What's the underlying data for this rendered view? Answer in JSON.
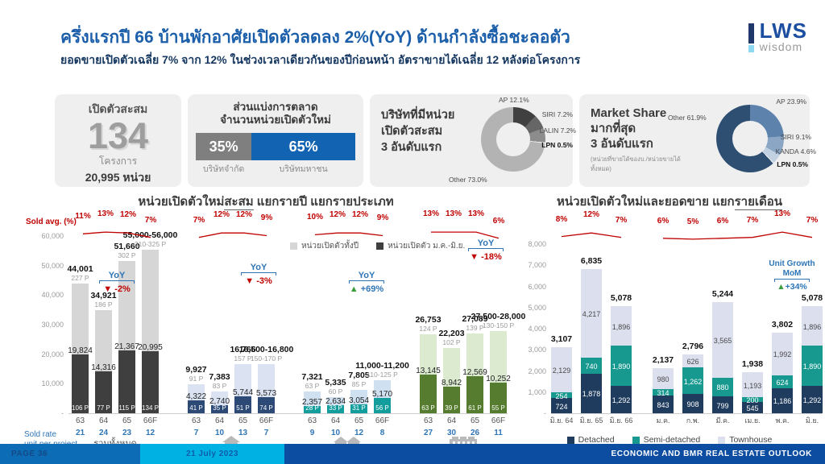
{
  "header": {
    "title": "ครึ่งแรกปี 66 บ้านพักอาศัยเปิดตัวลดลง 2%(YoY) ด้านกำลังซื้อชะลอตัว",
    "subtitle": "ยอดขายเปิดตัวเฉลี่ย 7% จาก 12% ในช่วงเวลาเดียวกันของปีก่อนหน้า อัตราขายได้เฉลี่ย 12 หลังต่อโครงการ",
    "logo": {
      "text": "LWS",
      "sub": "wisdom"
    }
  },
  "cards": {
    "launch_total": {
      "title": "เปิดตัวสะสม",
      "big_number": "134",
      "unit1": "โครงการ",
      "unit2": "20,995 หน่วย"
    },
    "market_split": {
      "title_line1": "ส่วนแบ่งการตลาด",
      "title_line2": "จำนวนหน่วยเปิดตัวใหม่",
      "left_pct": "35%",
      "left_label": "บริษัทจำกัด",
      "right_pct": "65%",
      "right_label": "บริษัทมหาชน",
      "left_color": "#7f7f7f",
      "right_color": "#1263b2"
    },
    "top_launch": {
      "title_line1": "บริษัทที่มีหน่วย",
      "title_line2": "เปิดตัวสะสม",
      "title_line3": "3 อันดับแรก"
    },
    "market_share": {
      "title_line1": "Market Share",
      "title_line2": "มากที่สุด",
      "title_line3": "3 อันดับแรก",
      "note": "(หน่วยที่ขายได้ของบ./หน่วยขายได้ทั้งหมด)"
    }
  },
  "chart_data": [
    {
      "id": "top-launch-donut",
      "type": "pie",
      "title": "บริษัทที่มีหน่วยเปิดตัวสะสม 3 อันดับแรก",
      "slices": [
        {
          "label": "AP 12.1%",
          "value": 12.1,
          "color": "#404040"
        },
        {
          "label": "SIRI 7.2%",
          "value": 7.2,
          "color": "#666666"
        },
        {
          "label": "LALIN 7.2%",
          "value": 7.2,
          "color": "#8c8c8c"
        },
        {
          "label": "LPN 0.5%",
          "value": 0.5,
          "color": "#f0f0f0"
        },
        {
          "label": "Other 73.0%",
          "value": 73.0,
          "color": "#b3b3b3"
        }
      ]
    },
    {
      "id": "market-share-donut",
      "type": "pie",
      "title": "Market Share มากที่สุด 3 อันดับแรก",
      "slices": [
        {
          "label": "AP 23.9%",
          "value": 23.9,
          "color": "#5d82ab"
        },
        {
          "label": "SIRI 9.1%",
          "value": 9.1,
          "color": "#8ba6c4"
        },
        {
          "label": "KANDA 4.6%",
          "value": 4.6,
          "color": "#c2d1e1"
        },
        {
          "label": "LPN 0.5%",
          "value": 0.5,
          "color": "#e9eef4"
        },
        {
          "label": "Other 61.9%",
          "value": 61.9,
          "color": "#2e4f72"
        }
      ]
    },
    {
      "id": "yearly",
      "type": "bar",
      "title_prefix": "หน่วยเปิดตัวใหม่",
      "title_underline": "สะสม",
      "title_suffix": " แยกรายปี แยกรายประเภท",
      "sold_avg_label": "Sold avg. (%)",
      "sold_rate_label_1": "Sold rate",
      "sold_rate_label_2": "unit per project",
      "ylim": [
        0,
        60000
      ],
      "yticks": [
        {
          "v": 60000,
          "label": "60,000"
        },
        {
          "v": 50000,
          "label": "50,000"
        },
        {
          "v": 40000,
          "label": "40,000"
        },
        {
          "v": 30000,
          "label": "30,000"
        },
        {
          "v": 20000,
          "label": "20,000"
        },
        {
          "v": 10000,
          "label": "10,000"
        },
        {
          "v": 0,
          "label": "-"
        }
      ],
      "legend": [
        {
          "label": "หน่วยเปิดตัวทั้งปี",
          "color": "#d6d6d6"
        },
        {
          "label": "หน่วยเปิดตัว ม.ค.-มิ.ย.",
          "color": "#3f3f3f"
        }
      ],
      "groups": [
        {
          "name": "รวมทั้งหมด",
          "icon": "none",
          "light_color": "#d6d6d6",
          "dark_color": "#3f3f3f",
          "sold_avg": [
            11,
            13,
            12,
            7
          ],
          "yoy": {
            "label": "YoY",
            "value": "-2%",
            "dir": "down"
          },
          "bars": [
            {
              "x": "63",
              "sold_rate": "21",
              "total": 44001,
              "total_label": "44,001",
              "proj": "227 P",
              "h1": 19824,
              "h1_label": "19,824",
              "h1_proj": "106 P"
            },
            {
              "x": "64",
              "sold_rate": "24",
              "total": 34921,
              "total_label": "34,921",
              "proj": "186 P",
              "h1": 14316,
              "h1_label": "14,316",
              "h1_proj": "77 P"
            },
            {
              "x": "65",
              "sold_rate": "23",
              "total": 51660,
              "total_label": "51,660",
              "proj": "302 P",
              "h1": 21367,
              "h1_label": "21,367",
              "h1_proj": "115 P"
            },
            {
              "x": "66F",
              "sold_rate": "12",
              "total": 55500,
              "total_label": "55,000-56,000",
              "proj": "310-325 P",
              "h1": 20995,
              "h1_label": "20,995",
              "h1_proj": "134 P"
            }
          ]
        },
        {
          "name": "",
          "icon": "house",
          "light_color": "#dbe3f3",
          "dark_color": "#2d4a76",
          "sold_avg": [
            7,
            12,
            12,
            9
          ],
          "yoy": {
            "label": "YoY",
            "value": "-3%",
            "dir": "down"
          },
          "bars": [
            {
              "x": "63",
              "sold_rate": "7",
              "total": 9927,
              "total_label": "9,927",
              "proj": "91 P",
              "h1": 4322,
              "h1_label": "4,322",
              "h1_proj": "41 P"
            },
            {
              "x": "64",
              "sold_rate": "10",
              "total": 7383,
              "total_label": "7,383",
              "proj": "83 P",
              "h1": 2740,
              "h1_label": "2,740",
              "h1_proj": "35 P"
            },
            {
              "x": "65",
              "sold_rate": "13",
              "total": 16766,
              "total_label": "16,766",
              "proj": "157 P",
              "h1": 5744,
              "h1_label": "5,744",
              "h1_proj": "51 P"
            },
            {
              "x": "66F",
              "sold_rate": "7",
              "total": 16650,
              "total_label": "16,500-16,800",
              "proj": "150-170 P",
              "h1": 5573,
              "h1_label": "5,573",
              "h1_proj": "74 P"
            }
          ]
        },
        {
          "name": "",
          "icon": "semi",
          "light_color": "#cfe0f0",
          "dark_color": "#149d9d",
          "sold_avg": [
            10,
            12,
            12,
            9
          ],
          "yoy": {
            "label": "YoY",
            "value": "+69%",
            "dir": "up"
          },
          "bars": [
            {
              "x": "63",
              "sold_rate": "9",
              "total": 7321,
              "total_label": "7,321",
              "proj": "63 P",
              "h1": 2357,
              "h1_label": "2,357",
              "h1_proj": "28 P"
            },
            {
              "x": "64",
              "sold_rate": "10",
              "total": 5335,
              "total_label": "5,335",
              "proj": "60 P",
              "h1": 2634,
              "h1_label": "2,634",
              "h1_proj": "33 P"
            },
            {
              "x": "65",
              "sold_rate": "12",
              "total": 7805,
              "total_label": "7,805",
              "proj": "85 P",
              "h1": 3054,
              "h1_label": "3,054",
              "h1_proj": "31 P"
            },
            {
              "x": "66F",
              "sold_rate": "8",
              "total": 11100,
              "total_label": "11,000-11,200",
              "proj": "110-125 P",
              "h1": 5170,
              "h1_label": "5,170",
              "h1_proj": "56 P"
            }
          ]
        },
        {
          "name": "",
          "icon": "town",
          "light_color": "#dcead0",
          "dark_color": "#567d2f",
          "sold_avg": [
            13,
            13,
            13,
            6
          ],
          "yoy": {
            "label": "YoY",
            "value": "-18%",
            "dir": "down"
          },
          "bars": [
            {
              "x": "63",
              "sold_rate": "27",
              "total": 26753,
              "total_label": "26,753",
              "proj": "124 P",
              "h1": 13145,
              "h1_label": "13,145",
              "h1_proj": "63 P"
            },
            {
              "x": "64",
              "sold_rate": "30",
              "total": 22203,
              "total_label": "22,203",
              "proj": "102 P",
              "h1": 8942,
              "h1_label": "8,942",
              "h1_proj": "39 P"
            },
            {
              "x": "65",
              "sold_rate": "26",
              "total": 27089,
              "total_label": "27,089",
              "proj": "139 P",
              "h1": 12569,
              "h1_label": "12,569",
              "h1_proj": "61 P"
            },
            {
              "x": "66F",
              "sold_rate": "11",
              "total": 27750,
              "total_label": "27,500-28,000",
              "proj": "130-150 P",
              "h1": 10252,
              "h1_label": "10,252",
              "h1_proj": "55 P"
            }
          ]
        }
      ]
    },
    {
      "id": "monthly",
      "type": "stacked-bar",
      "title_prefix": "หน่วยเปิดตัวใหม่และยอดขาย แยก",
      "title_underline": "รายเดือน",
      "ylim": [
        0,
        8000
      ],
      "yticks": [
        {
          "v": 8000,
          "label": "8,000"
        },
        {
          "v": 7000,
          "label": "7,000"
        },
        {
          "v": 6000,
          "label": "6,000"
        },
        {
          "v": 5000,
          "label": "5,000"
        },
        {
          "v": 4000,
          "label": "4,000"
        },
        {
          "v": 3000,
          "label": "3,000"
        },
        {
          "v": 2000,
          "label": "2,000"
        },
        {
          "v": 1000,
          "label": "1,000"
        },
        {
          "v": 0,
          "label": "-"
        }
      ],
      "growth_cluster1": [
        8,
        12,
        7
      ],
      "growth_cluster2": [
        6,
        5,
        6,
        7,
        13,
        7
      ],
      "unit_growth": {
        "line1": "Unit Growth",
        "line2": "MoM",
        "value": "+34%"
      },
      "legend": [
        {
          "label": "Detached",
          "color": "#1f3c5e"
        },
        {
          "label": "Semi-detached",
          "color": "#17998f"
        },
        {
          "label": "Townhouse",
          "color": "#dcdfee"
        }
      ],
      "bars": [
        {
          "x": "มิ.ย. 64",
          "total_label": "3,107",
          "segments": [
            {
              "v": 724,
              "label": "724"
            },
            {
              "v": 254,
              "label": "254"
            },
            {
              "v": 2129,
              "label": "2,129"
            }
          ]
        },
        {
          "x": "มิ.ย. 65",
          "total_label": "6,835",
          "segments": [
            {
              "v": 1878,
              "label": "1,878"
            },
            {
              "v": 740,
              "label": "740"
            },
            {
              "v": 4217,
              "label": "4,217"
            }
          ]
        },
        {
          "x": "มิ.ย. 66",
          "total_label": "5,078",
          "segments": [
            {
              "v": 1292,
              "label": "1,292"
            },
            {
              "v": 1890,
              "label": "1,890"
            },
            {
              "v": 1896,
              "label": "1,896"
            }
          ]
        },
        {
          "x": "ม.ค.",
          "total_label": "2,137",
          "segments": [
            {
              "v": 843,
              "label": "843"
            },
            {
              "v": 314,
              "label": "314"
            },
            {
              "v": 980,
              "label": "980"
            }
          ]
        },
        {
          "x": "ก.พ.",
          "total_label": "2,796",
          "segments": [
            {
              "v": 908,
              "label": "908"
            },
            {
              "v": 1262,
              "label": "1,262"
            },
            {
              "v": 626,
              "label": "626"
            }
          ]
        },
        {
          "x": "มี.ค.",
          "total_label": "5,244",
          "segments": [
            {
              "v": 799,
              "label": "799"
            },
            {
              "v": 880,
              "label": "880"
            },
            {
              "v": 3565,
              "label": "3,565"
            }
          ]
        },
        {
          "x": "เม.ย.",
          "total_label": "1,938",
          "segments": [
            {
              "v": 545,
              "label": "545"
            },
            {
              "v": 200,
              "label": "200"
            },
            {
              "v": 1193,
              "label": "1,193"
            }
          ]
        },
        {
          "x": "พ.ค.",
          "total_label": "3,802",
          "segments": [
            {
              "v": 1186,
              "label": "1,186"
            },
            {
              "v": 624,
              "label": "624"
            },
            {
              "v": 1992,
              "label": "1,992"
            }
          ]
        },
        {
          "x": "มิ.ย.",
          "total_label": "5,078",
          "segments": [
            {
              "v": 1292,
              "label": "1,292"
            },
            {
              "v": 1890,
              "label": "1,890"
            },
            {
              "v": 1896,
              "label": "1,896"
            }
          ]
        }
      ]
    }
  ],
  "footer": {
    "page": "PAGE 36",
    "date": "21 July 2023",
    "right": "ECONOMIC AND BMR REAL ESTATE OUTLOOK"
  }
}
